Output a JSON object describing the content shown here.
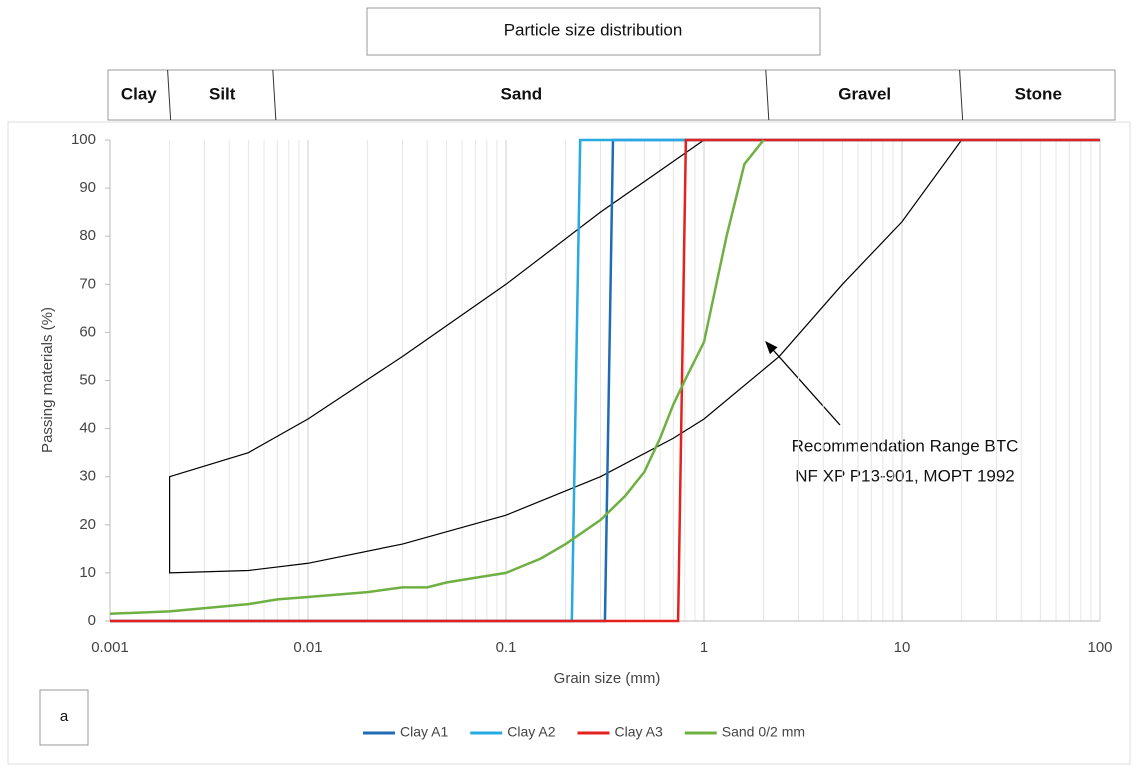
{
  "chart_data": {
    "type": "line",
    "title": "Particle size distribution",
    "size_classes": [
      "Clay",
      "Silt",
      "Sand",
      "Gravel",
      "Stone"
    ],
    "class_bounds": [
      0.002,
      0.0068,
      2.1,
      20
    ],
    "xlabel": "Grain size (mm)",
    "ylabel": "Passing materials (%)",
    "xscale": "log",
    "xlim": [
      0.001,
      100
    ],
    "xticks": [
      0.001,
      0.01,
      0.1,
      1,
      10,
      100
    ],
    "ylim": [
      0,
      100
    ],
    "yticks": [
      0,
      10,
      20,
      30,
      40,
      50,
      60,
      70,
      80,
      90,
      100
    ],
    "grid": "x",
    "minor_grid": true,
    "envelope": {
      "color": "#000000",
      "x": [
        0.002,
        0.005,
        0.01,
        0.03,
        0.1,
        0.3,
        1,
        20,
        10,
        5,
        2.4,
        1,
        0.7,
        0.3,
        0.1,
        0.03,
        0.01,
        0.005,
        0.002
      ],
      "y": [
        30,
        35,
        42,
        55,
        70,
        85,
        100,
        100,
        83,
        70,
        55,
        42,
        38,
        30,
        22,
        16,
        12,
        10.5,
        10
      ]
    },
    "annotation": [
      "Recommendation Range BTC",
      "NF XP P13-901, MOPT 1992"
    ],
    "series": [
      {
        "name": "Clay A1",
        "color": "#1f6cb5",
        "x": [
          0.001,
          0.316,
          0.347,
          100
        ],
        "values": [
          0,
          0,
          100,
          100
        ]
      },
      {
        "name": "Clay A2",
        "color": "#27a9e1",
        "x": [
          0.001,
          0.215,
          0.237,
          100
        ],
        "values": [
          0,
          0,
          100,
          100
        ]
      },
      {
        "name": "Clay A3",
        "color": "#e3221f",
        "x": [
          0.001,
          0.74,
          0.81,
          100
        ],
        "values": [
          0,
          0,
          100,
          100
        ]
      },
      {
        "name": "Sand 0/2 mm",
        "color": "#6fb043",
        "x": [
          0.001,
          0.002,
          0.005,
          0.007,
          0.01,
          0.02,
          0.03,
          0.04,
          0.05,
          0.07,
          0.1,
          0.15,
          0.2,
          0.3,
          0.4,
          0.5,
          0.6,
          0.7,
          0.8,
          1,
          1.3,
          1.6,
          2
        ],
        "values": [
          1.5,
          2,
          3.5,
          4.5,
          5,
          6,
          7,
          7,
          8,
          9,
          10,
          13,
          16,
          21,
          26,
          31,
          38,
          45,
          50,
          58,
          80,
          95,
          100
        ]
      }
    ],
    "panel_label": "a"
  }
}
